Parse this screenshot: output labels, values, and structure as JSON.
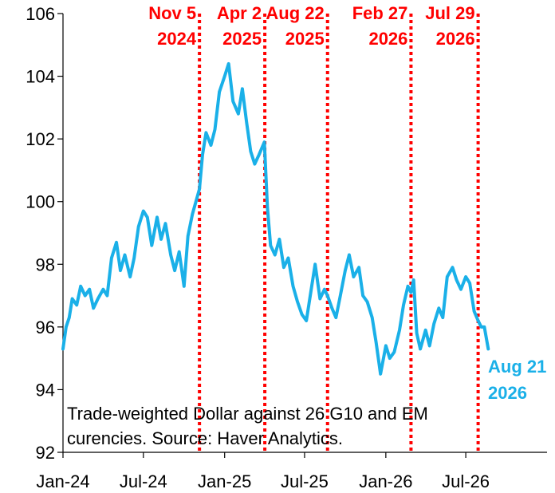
{
  "chart_data": {
    "type": "line",
    "ylim": [
      92,
      106
    ],
    "yticks": [
      92,
      94,
      96,
      98,
      100,
      102,
      104,
      106
    ],
    "ytick_labels": [
      "92",
      "94",
      "96",
      "98",
      "100",
      "102",
      "104",
      "106"
    ],
    "xticks": [
      {
        "date": "2024-01",
        "label": "Jan-24"
      },
      {
        "date": "2024-07",
        "label": "Jul-24"
      },
      {
        "date": "2025-01",
        "label": "Jan-25"
      },
      {
        "date": "2025-07",
        "label": "Jul-25"
      },
      {
        "date": "2026-01",
        "label": "Jan-26"
      },
      {
        "date": "2026-07",
        "label": "Jul-26"
      }
    ],
    "xlim": [
      "2024-01",
      "2027-01"
    ],
    "series_color": "#1ab0e8",
    "event_color": "#ff0000",
    "series": [
      {
        "points": [
          [
            "2024-01-01",
            95.3
          ],
          [
            "2024-01-08",
            96.0
          ],
          [
            "2024-01-15",
            96.3
          ],
          [
            "2024-01-22",
            96.9
          ],
          [
            "2024-02-01",
            96.7
          ],
          [
            "2024-02-10",
            97.3
          ],
          [
            "2024-02-20",
            97.0
          ],
          [
            "2024-03-01",
            97.2
          ],
          [
            "2024-03-10",
            96.6
          ],
          [
            "2024-03-20",
            96.9
          ],
          [
            "2024-04-01",
            97.2
          ],
          [
            "2024-04-10",
            97.0
          ],
          [
            "2024-04-20",
            98.2
          ],
          [
            "2024-05-01",
            98.7
          ],
          [
            "2024-05-10",
            97.8
          ],
          [
            "2024-05-20",
            98.3
          ],
          [
            "2024-06-01",
            97.6
          ],
          [
            "2024-06-10",
            98.2
          ],
          [
            "2024-06-20",
            99.2
          ],
          [
            "2024-07-01",
            99.7
          ],
          [
            "2024-07-10",
            99.5
          ],
          [
            "2024-07-20",
            98.6
          ],
          [
            "2024-08-01",
            99.5
          ],
          [
            "2024-08-10",
            98.8
          ],
          [
            "2024-08-20",
            99.3
          ],
          [
            "2024-09-01",
            98.3
          ],
          [
            "2024-09-10",
            97.8
          ],
          [
            "2024-09-20",
            98.4
          ],
          [
            "2024-10-01",
            97.3
          ],
          [
            "2024-10-10",
            98.9
          ],
          [
            "2024-10-20",
            99.6
          ],
          [
            "2024-11-01",
            100.2
          ],
          [
            "2024-11-05",
            100.4
          ],
          [
            "2024-11-12",
            101.5
          ],
          [
            "2024-11-20",
            102.2
          ],
          [
            "2024-12-01",
            101.8
          ],
          [
            "2024-12-10",
            102.3
          ],
          [
            "2024-12-20",
            103.5
          ],
          [
            "2025-01-01",
            104.0
          ],
          [
            "2025-01-10",
            104.4
          ],
          [
            "2025-01-20",
            103.2
          ],
          [
            "2025-02-01",
            102.8
          ],
          [
            "2025-02-10",
            103.6
          ],
          [
            "2025-02-20",
            102.5
          ],
          [
            "2025-03-01",
            101.6
          ],
          [
            "2025-03-10",
            101.2
          ],
          [
            "2025-03-20",
            101.5
          ],
          [
            "2025-04-01",
            101.9
          ],
          [
            "2025-04-08",
            99.8
          ],
          [
            "2025-04-15",
            98.6
          ],
          [
            "2025-04-25",
            98.3
          ],
          [
            "2025-05-05",
            98.8
          ],
          [
            "2025-05-15",
            97.9
          ],
          [
            "2025-05-25",
            98.2
          ],
          [
            "2025-06-05",
            97.3
          ],
          [
            "2025-06-15",
            96.8
          ],
          [
            "2025-06-25",
            96.4
          ],
          [
            "2025-07-05",
            96.2
          ],
          [
            "2025-07-15",
            97.1
          ],
          [
            "2025-07-25",
            98.0
          ],
          [
            "2025-08-05",
            96.9
          ],
          [
            "2025-08-15",
            97.2
          ],
          [
            "2025-08-22",
            97.0
          ],
          [
            "2025-09-01",
            96.6
          ],
          [
            "2025-09-10",
            96.3
          ],
          [
            "2025-09-20",
            97.0
          ],
          [
            "2025-10-01",
            97.8
          ],
          [
            "2025-10-10",
            98.3
          ],
          [
            "2025-10-20",
            97.6
          ],
          [
            "2025-11-01",
            97.9
          ],
          [
            "2025-11-10",
            97.0
          ],
          [
            "2025-11-20",
            96.8
          ],
          [
            "2025-12-01",
            96.3
          ],
          [
            "2025-12-10",
            95.5
          ],
          [
            "2025-12-20",
            94.5
          ],
          [
            "2026-01-01",
            95.4
          ],
          [
            "2026-01-10",
            95.0
          ],
          [
            "2026-01-20",
            95.2
          ],
          [
            "2026-02-01",
            95.9
          ],
          [
            "2026-02-10",
            96.7
          ],
          [
            "2026-02-20",
            97.3
          ],
          [
            "2026-02-27",
            97.1
          ],
          [
            "2026-03-05",
            97.5
          ],
          [
            "2026-03-12",
            95.8
          ],
          [
            "2026-03-20",
            95.3
          ],
          [
            "2026-04-01",
            95.9
          ],
          [
            "2026-04-10",
            95.4
          ],
          [
            "2026-04-20",
            96.1
          ],
          [
            "2026-05-01",
            96.6
          ],
          [
            "2026-05-10",
            96.3
          ],
          [
            "2026-05-20",
            97.6
          ],
          [
            "2026-06-01",
            97.9
          ],
          [
            "2026-06-10",
            97.5
          ],
          [
            "2026-06-20",
            97.2
          ],
          [
            "2026-07-01",
            97.6
          ],
          [
            "2026-07-10",
            97.4
          ],
          [
            "2026-07-20",
            96.5
          ],
          [
            "2026-07-29",
            96.2
          ],
          [
            "2026-08-05",
            96.0
          ],
          [
            "2026-08-12",
            96.0
          ],
          [
            "2026-08-21",
            95.3
          ]
        ]
      }
    ],
    "events": [
      {
        "date": "2024-11-05",
        "line1": "Nov 5",
        "line2": "2024"
      },
      {
        "date": "2025-04-02",
        "line1": "Apr 2",
        "line2": "2025"
      },
      {
        "date": "2025-08-22",
        "line1": "Aug 22",
        "line2": "2025"
      },
      {
        "date": "2026-02-27",
        "line1": "Feb 27",
        "line2": "2026"
      },
      {
        "date": "2026-07-29",
        "line1": "Jul 29",
        "line2": "2026"
      }
    ],
    "end_label": {
      "line1": "Aug 21",
      "line2": "2026"
    },
    "note": {
      "line1": "Trade-weighted Dollar against 26 G10 and EM",
      "line2": "curencies. Source: Haver Analytics."
    }
  }
}
